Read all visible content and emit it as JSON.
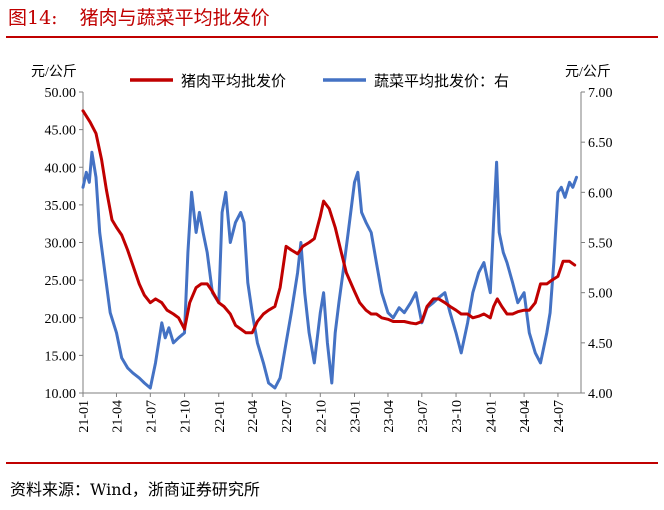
{
  "figure": {
    "label": "图14:",
    "title": "猪肉与蔬菜平均批发价",
    "source": "资料来源：Wind，浙商证券研究所"
  },
  "colors": {
    "pork": "#c00000",
    "vegetable": "#4472c4",
    "title": "#c00000",
    "rule": "#c00000"
  },
  "chart_data": {
    "type": "line",
    "ylabel_left": "元/公斤",
    "ylabel_right": "元/公斤",
    "ylim_left": [
      10,
      50
    ],
    "ylim_right": [
      4.0,
      7.0
    ],
    "yticks_left": [
      "10.00",
      "15.00",
      "20.00",
      "25.00",
      "30.00",
      "35.00",
      "40.00",
      "45.00",
      "50.00"
    ],
    "yticks_right": [
      "4.00",
      "4.50",
      "5.00",
      "5.50",
      "6.00",
      "6.50",
      "7.00"
    ],
    "xticks": [
      "21-01",
      "21-04",
      "21-07",
      "21-10",
      "22-01",
      "22-04",
      "22-07",
      "22-10",
      "23-01",
      "23-04",
      "23-07",
      "23-10",
      "24-01",
      "24-04",
      "24-07"
    ],
    "x_range_months": [
      "2021-01",
      "2024-09"
    ],
    "legend_position": "top",
    "grid": false,
    "series": [
      {
        "name": "猪肉平均批发价",
        "axis": "left",
        "points": [
          [
            "2021-01-01",
            47.5
          ],
          [
            "2021-01-20",
            46.0
          ],
          [
            "2021-02-05",
            44.5
          ],
          [
            "2021-02-20",
            41.0
          ],
          [
            "2021-03-05",
            37.0
          ],
          [
            "2021-03-20",
            33.0
          ],
          [
            "2021-04-01",
            32.0
          ],
          [
            "2021-04-15",
            31.0
          ],
          [
            "2021-05-01",
            29.0
          ],
          [
            "2021-05-15",
            27.0
          ],
          [
            "2021-06-01",
            24.5
          ],
          [
            "2021-06-15",
            23.0
          ],
          [
            "2021-07-01",
            22.0
          ],
          [
            "2021-07-15",
            22.5
          ],
          [
            "2021-08-01",
            22.0
          ],
          [
            "2021-08-15",
            21.0
          ],
          [
            "2021-09-01",
            20.5
          ],
          [
            "2021-09-15",
            20.0
          ],
          [
            "2021-10-01",
            18.5
          ],
          [
            "2021-10-15",
            22.0
          ],
          [
            "2021-11-01",
            24.0
          ],
          [
            "2021-11-15",
            24.5
          ],
          [
            "2021-12-01",
            24.5
          ],
          [
            "2021-12-15",
            23.5
          ],
          [
            "2022-01-01",
            22.0
          ],
          [
            "2022-01-15",
            21.5
          ],
          [
            "2022-02-01",
            20.5
          ],
          [
            "2022-02-15",
            19.0
          ],
          [
            "2022-03-01",
            18.5
          ],
          [
            "2022-03-15",
            18.0
          ],
          [
            "2022-04-01",
            18.0
          ],
          [
            "2022-04-15",
            19.5
          ],
          [
            "2022-05-01",
            20.5
          ],
          [
            "2022-05-15",
            21.0
          ],
          [
            "2022-06-01",
            21.5
          ],
          [
            "2022-06-15",
            24.0
          ],
          [
            "2022-07-01",
            29.5
          ],
          [
            "2022-07-15",
            29.0
          ],
          [
            "2022-08-01",
            28.5
          ],
          [
            "2022-08-15",
            29.5
          ],
          [
            "2022-09-01",
            30.0
          ],
          [
            "2022-09-15",
            30.5
          ],
          [
            "2022-10-01",
            33.5
          ],
          [
            "2022-10-10",
            35.5
          ],
          [
            "2022-10-25",
            34.5
          ],
          [
            "2022-11-10",
            32.0
          ],
          [
            "2022-11-25",
            29.0
          ],
          [
            "2022-12-10",
            26.0
          ],
          [
            "2023-01-01",
            23.5
          ],
          [
            "2023-01-15",
            22.0
          ],
          [
            "2023-02-01",
            21.0
          ],
          [
            "2023-02-15",
            20.5
          ],
          [
            "2023-03-01",
            20.5
          ],
          [
            "2023-03-15",
            20.0
          ],
          [
            "2023-04-01",
            19.8
          ],
          [
            "2023-04-15",
            19.5
          ],
          [
            "2023-05-01",
            19.5
          ],
          [
            "2023-05-15",
            19.5
          ],
          [
            "2023-06-01",
            19.3
          ],
          [
            "2023-06-15",
            19.2
          ],
          [
            "2023-07-01",
            19.5
          ],
          [
            "2023-07-15",
            21.5
          ],
          [
            "2023-08-01",
            22.5
          ],
          [
            "2023-08-15",
            22.5
          ],
          [
            "2023-09-01",
            22.0
          ],
          [
            "2023-09-15",
            21.5
          ],
          [
            "2023-10-01",
            21.0
          ],
          [
            "2023-10-15",
            20.5
          ],
          [
            "2023-11-01",
            20.5
          ],
          [
            "2023-11-15",
            20.0
          ],
          [
            "2023-12-01",
            20.2
          ],
          [
            "2023-12-15",
            20.5
          ],
          [
            "2024-01-01",
            20.0
          ],
          [
            "2024-01-10",
            21.5
          ],
          [
            "2024-01-20",
            22.5
          ],
          [
            "2024-02-01",
            21.5
          ],
          [
            "2024-02-15",
            20.5
          ],
          [
            "2024-03-01",
            20.5
          ],
          [
            "2024-03-15",
            20.8
          ],
          [
            "2024-04-01",
            21.0
          ],
          [
            "2024-04-15",
            21.0
          ],
          [
            "2024-05-01",
            22.0
          ],
          [
            "2024-05-15",
            24.5
          ],
          [
            "2024-06-01",
            24.5
          ],
          [
            "2024-06-15",
            25.0
          ],
          [
            "2024-07-01",
            25.5
          ],
          [
            "2024-07-15",
            27.5
          ],
          [
            "2024-08-01",
            27.5
          ],
          [
            "2024-08-15",
            27.0
          ]
        ]
      },
      {
        "name": "蔬菜平均批发价：右",
        "axis": "right",
        "points": [
          [
            "2021-01-01",
            6.05
          ],
          [
            "2021-01-10",
            6.2
          ],
          [
            "2021-01-18",
            6.1
          ],
          [
            "2021-01-25",
            6.4
          ],
          [
            "2021-02-05",
            6.15
          ],
          [
            "2021-02-15",
            5.6
          ],
          [
            "2021-03-01",
            5.2
          ],
          [
            "2021-03-15",
            4.8
          ],
          [
            "2021-04-01",
            4.6
          ],
          [
            "2021-04-15",
            4.35
          ],
          [
            "2021-05-01",
            4.25
          ],
          [
            "2021-05-15",
            4.2
          ],
          [
            "2021-06-01",
            4.15
          ],
          [
            "2021-06-15",
            4.1
          ],
          [
            "2021-07-01",
            4.05
          ],
          [
            "2021-07-15",
            4.3
          ],
          [
            "2021-08-01",
            4.7
          ],
          [
            "2021-08-10",
            4.55
          ],
          [
            "2021-08-20",
            4.65
          ],
          [
            "2021-09-01",
            4.5
          ],
          [
            "2021-09-15",
            4.55
          ],
          [
            "2021-10-01",
            4.6
          ],
          [
            "2021-10-10",
            5.4
          ],
          [
            "2021-10-20",
            6.0
          ],
          [
            "2021-11-01",
            5.6
          ],
          [
            "2021-11-10",
            5.8
          ],
          [
            "2021-11-20",
            5.6
          ],
          [
            "2021-12-01",
            5.4
          ],
          [
            "2021-12-15",
            5.0
          ],
          [
            "2022-01-01",
            4.9
          ],
          [
            "2022-01-10",
            5.8
          ],
          [
            "2022-01-20",
            6.0
          ],
          [
            "2022-02-01",
            5.5
          ],
          [
            "2022-02-15",
            5.7
          ],
          [
            "2022-03-01",
            5.8
          ],
          [
            "2022-03-10",
            5.7
          ],
          [
            "2022-03-20",
            5.1
          ],
          [
            "2022-04-01",
            4.8
          ],
          [
            "2022-04-15",
            4.5
          ],
          [
            "2022-05-01",
            4.3
          ],
          [
            "2022-05-15",
            4.1
          ],
          [
            "2022-06-01",
            4.05
          ],
          [
            "2022-06-15",
            4.15
          ],
          [
            "2022-07-01",
            4.5
          ],
          [
            "2022-07-15",
            4.8
          ],
          [
            "2022-08-01",
            5.2
          ],
          [
            "2022-08-10",
            5.5
          ],
          [
            "2022-08-20",
            5.0
          ],
          [
            "2022-09-01",
            4.6
          ],
          [
            "2022-09-15",
            4.3
          ],
          [
            "2022-10-01",
            4.8
          ],
          [
            "2022-10-10",
            5.0
          ],
          [
            "2022-10-20",
            4.5
          ],
          [
            "2022-11-01",
            4.1
          ],
          [
            "2022-11-10",
            4.6
          ],
          [
            "2022-11-20",
            4.9
          ],
          [
            "2022-12-01",
            5.2
          ],
          [
            "2022-12-15",
            5.6
          ],
          [
            "2023-01-01",
            6.1
          ],
          [
            "2023-01-10",
            6.2
          ],
          [
            "2023-01-20",
            5.8
          ],
          [
            "2023-02-01",
            5.7
          ],
          [
            "2023-02-15",
            5.6
          ],
          [
            "2023-03-01",
            5.3
          ],
          [
            "2023-03-15",
            5.0
          ],
          [
            "2023-04-01",
            4.8
          ],
          [
            "2023-04-15",
            4.75
          ],
          [
            "2023-05-01",
            4.85
          ],
          [
            "2023-05-15",
            4.8
          ],
          [
            "2023-06-01",
            4.9
          ],
          [
            "2023-06-15",
            5.0
          ],
          [
            "2023-07-01",
            4.7
          ],
          [
            "2023-07-15",
            4.85
          ],
          [
            "2023-08-01",
            4.9
          ],
          [
            "2023-08-15",
            4.95
          ],
          [
            "2023-09-01",
            5.0
          ],
          [
            "2023-09-15",
            4.8
          ],
          [
            "2023-10-01",
            4.6
          ],
          [
            "2023-10-15",
            4.4
          ],
          [
            "2023-11-01",
            4.7
          ],
          [
            "2023-11-15",
            5.0
          ],
          [
            "2023-12-01",
            5.2
          ],
          [
            "2023-12-15",
            5.3
          ],
          [
            "2024-01-01",
            5.0
          ],
          [
            "2024-01-10",
            5.7
          ],
          [
            "2024-01-18",
            6.3
          ],
          [
            "2024-01-25",
            5.6
          ],
          [
            "2024-02-05",
            5.4
          ],
          [
            "2024-02-15",
            5.3
          ],
          [
            "2024-03-01",
            5.1
          ],
          [
            "2024-03-15",
            4.9
          ],
          [
            "2024-04-01",
            5.0
          ],
          [
            "2024-04-15",
            4.6
          ],
          [
            "2024-05-01",
            4.4
          ],
          [
            "2024-05-15",
            4.3
          ],
          [
            "2024-06-01",
            4.6
          ],
          [
            "2024-06-10",
            4.8
          ],
          [
            "2024-06-20",
            5.3
          ],
          [
            "2024-07-01",
            6.0
          ],
          [
            "2024-07-10",
            6.05
          ],
          [
            "2024-07-20",
            5.95
          ],
          [
            "2024-08-01",
            6.1
          ],
          [
            "2024-08-10",
            6.05
          ],
          [
            "2024-08-20",
            6.15
          ]
        ]
      }
    ]
  }
}
